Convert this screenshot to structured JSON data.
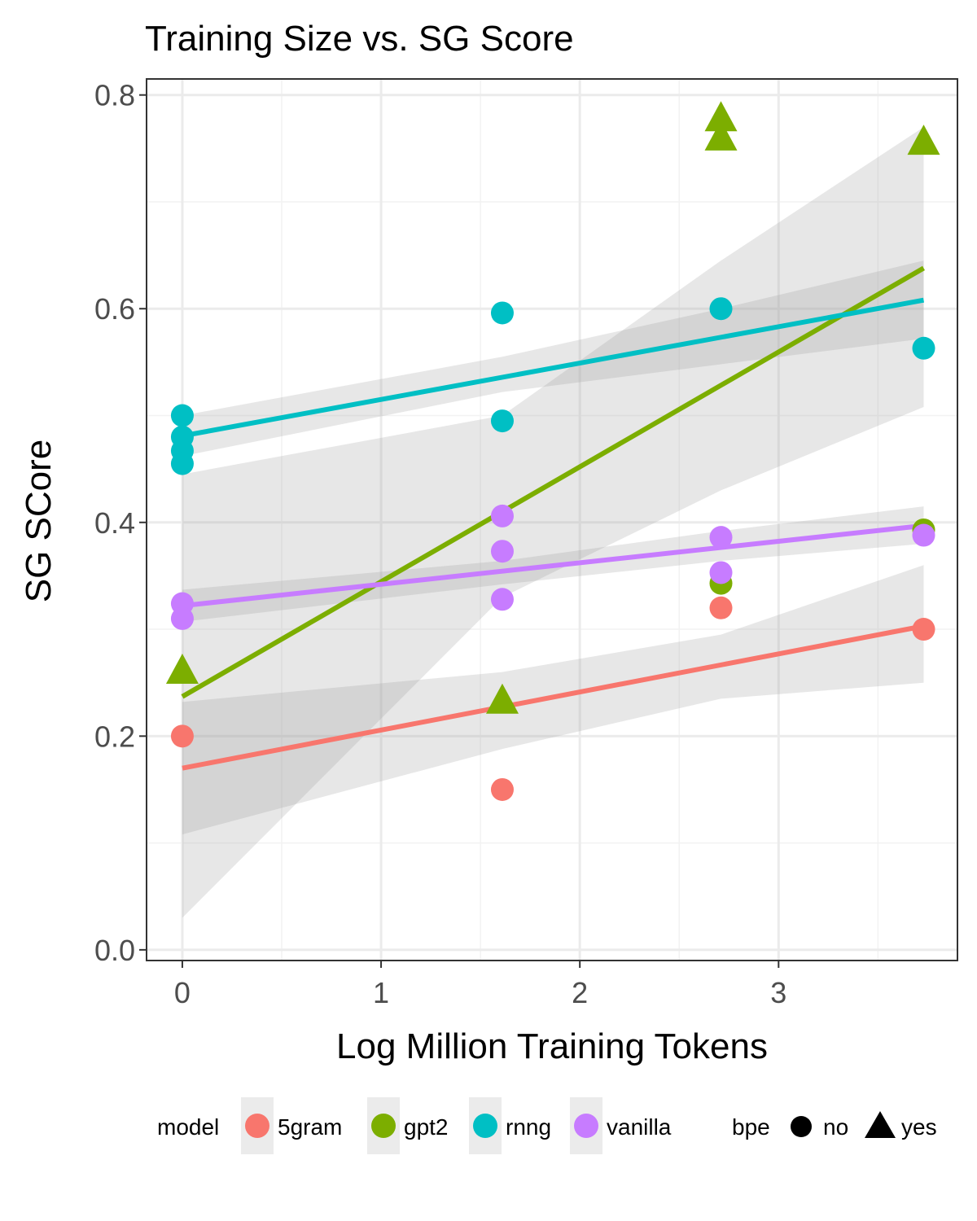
{
  "chart_data": {
    "type": "scatter",
    "title": "Training Size vs. SG Score",
    "xlabel": "Log Million Training Tokens",
    "ylabel": "SG SCore",
    "xlim": [
      -0.18,
      3.9
    ],
    "ylim": [
      -0.01,
      0.815
    ],
    "x_ticks": [
      0,
      1,
      2,
      3
    ],
    "y_ticks": [
      0.0,
      0.2,
      0.4,
      0.6,
      0.8
    ],
    "x_tick_labels": [
      "0",
      "1",
      "2",
      "3"
    ],
    "y_tick_labels": [
      "0.0",
      "0.2",
      "0.4",
      "0.6",
      "0.8"
    ],
    "grid": true,
    "legend_position": "bottom",
    "legend": {
      "model_title": "model",
      "bpe_title": "bpe",
      "bpe_entries": [
        {
          "label": "no",
          "shape": "circle"
        },
        {
          "label": "yes",
          "shape": "triangle"
        }
      ]
    },
    "series": [
      {
        "name": "5gram",
        "color": "#F8766D",
        "points": [
          {
            "x": 0,
            "y": 0.2,
            "bpe": "no"
          },
          {
            "x": 1.61,
            "y": 0.15,
            "bpe": "no"
          },
          {
            "x": 2.71,
            "y": 0.32,
            "bpe": "no"
          },
          {
            "x": 3.73,
            "y": 0.3,
            "bpe": "no"
          }
        ],
        "fit": {
          "x": [
            0,
            3.73
          ],
          "y": [
            0.17,
            0.303
          ]
        },
        "ci_lower": {
          "x": [
            0,
            1.61,
            2.71,
            3.73
          ],
          "y": [
            0.108,
            0.188,
            0.235,
            0.25
          ]
        },
        "ci_upper": {
          "x": [
            0,
            1.61,
            2.71,
            3.73
          ],
          "y": [
            0.232,
            0.26,
            0.295,
            0.36
          ]
        }
      },
      {
        "name": "gpt2",
        "color": "#7CAE00",
        "points": [
          {
            "x": 0,
            "y": 0.262,
            "bpe": "yes"
          },
          {
            "x": 1.61,
            "y": 0.234,
            "bpe": "yes"
          },
          {
            "x": 2.71,
            "y": 0.343,
            "bpe": "no"
          },
          {
            "x": 2.71,
            "y": 0.761,
            "bpe": "yes"
          },
          {
            "x": 2.71,
            "y": 0.779,
            "bpe": "yes"
          },
          {
            "x": 3.73,
            "y": 0.393,
            "bpe": "no"
          },
          {
            "x": 3.73,
            "y": 0.757,
            "bpe": "yes"
          }
        ],
        "fit": {
          "x": [
            0,
            3.73
          ],
          "y": [
            0.237,
            0.638
          ]
        },
        "ci_lower": {
          "x": [
            0,
            1.61,
            2.71,
            3.73
          ],
          "y": [
            0.03,
            0.33,
            0.43,
            0.508
          ]
        },
        "ci_upper": {
          "x": [
            0,
            1.61,
            2.71,
            3.73
          ],
          "y": [
            0.445,
            0.5,
            0.645,
            0.77
          ]
        }
      },
      {
        "name": "rnng",
        "color": "#00BFC4",
        "points": [
          {
            "x": 0,
            "y": 0.5,
            "bpe": "no"
          },
          {
            "x": 0,
            "y": 0.48,
            "bpe": "no"
          },
          {
            "x": 0,
            "y": 0.467,
            "bpe": "no"
          },
          {
            "x": 0,
            "y": 0.455,
            "bpe": "no"
          },
          {
            "x": 1.61,
            "y": 0.596,
            "bpe": "no"
          },
          {
            "x": 1.61,
            "y": 0.495,
            "bpe": "no"
          },
          {
            "x": 2.71,
            "y": 0.6,
            "bpe": "no"
          },
          {
            "x": 3.73,
            "y": 0.563,
            "bpe": "no"
          }
        ],
        "fit": {
          "x": [
            0,
            3.73
          ],
          "y": [
            0.481,
            0.608
          ]
        },
        "ci_lower": {
          "x": [
            0,
            1.61,
            2.71,
            3.73
          ],
          "y": [
            0.462,
            0.522,
            0.548,
            0.572
          ]
        },
        "ci_upper": {
          "x": [
            0,
            1.61,
            2.71,
            3.73
          ],
          "y": [
            0.5,
            0.555,
            0.6,
            0.645
          ]
        }
      },
      {
        "name": "vanilla",
        "color": "#C77CFF",
        "points": [
          {
            "x": 0,
            "y": 0.324,
            "bpe": "no"
          },
          {
            "x": 0,
            "y": 0.31,
            "bpe": "no"
          },
          {
            "x": 1.61,
            "y": 0.406,
            "bpe": "no"
          },
          {
            "x": 1.61,
            "y": 0.373,
            "bpe": "no"
          },
          {
            "x": 1.61,
            "y": 0.328,
            "bpe": "no"
          },
          {
            "x": 2.71,
            "y": 0.386,
            "bpe": "no"
          },
          {
            "x": 2.71,
            "y": 0.353,
            "bpe": "no"
          },
          {
            "x": 3.73,
            "y": 0.388,
            "bpe": "no"
          }
        ],
        "fit": {
          "x": [
            0,
            3.73
          ],
          "y": [
            0.322,
            0.397
          ]
        },
        "ci_lower": {
          "x": [
            0,
            1.61,
            2.71,
            3.73
          ],
          "y": [
            0.307,
            0.342,
            0.364,
            0.38
          ]
        },
        "ci_upper": {
          "x": [
            0,
            1.61,
            2.71,
            3.73
          ],
          "y": [
            0.337,
            0.364,
            0.392,
            0.415
          ]
        }
      }
    ]
  }
}
